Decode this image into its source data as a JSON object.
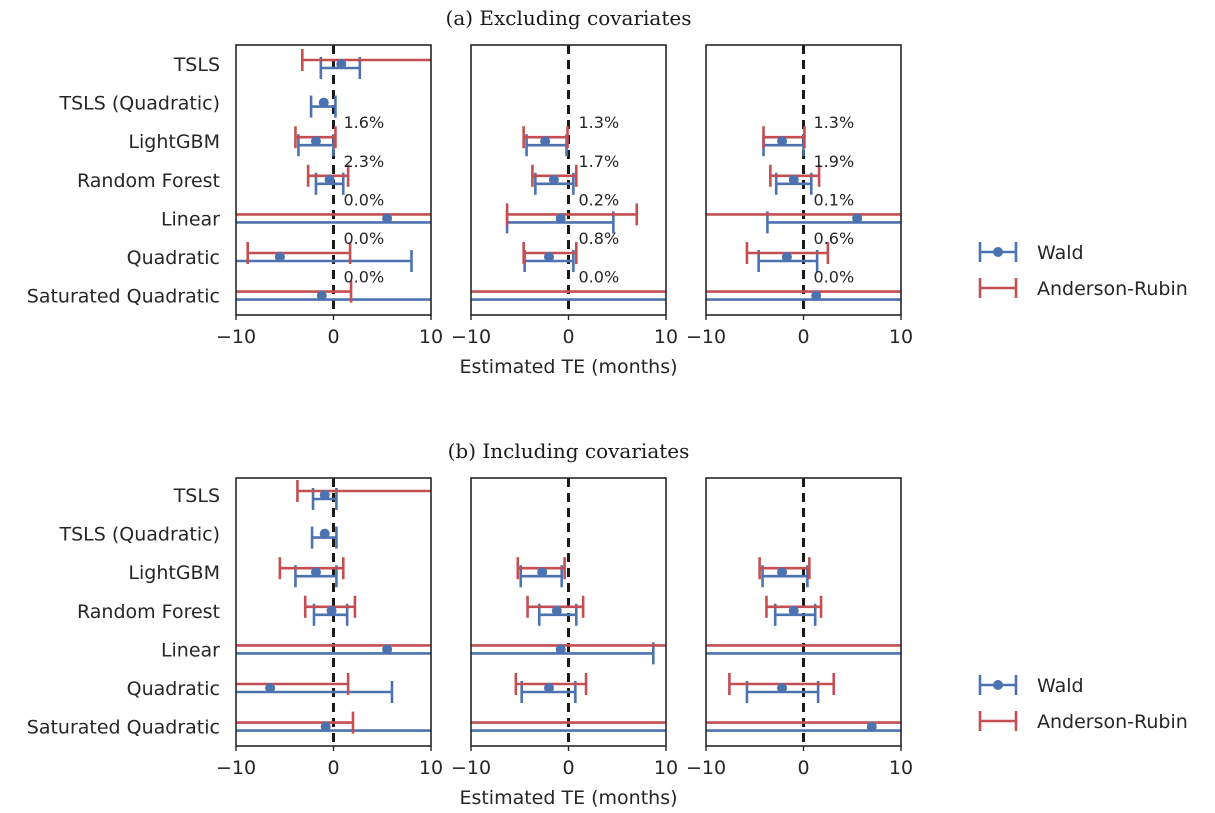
{
  "figure": {
    "xlabel": "Estimated TE (months)",
    "legend": [
      "Wald",
      "Anderson-Rubin"
    ],
    "colors": {
      "wald": "#4C72B0",
      "ar": "#C44E52",
      "zero_line": "#1a1a1a",
      "frame": "#262626"
    }
  },
  "chart_data": [
    {
      "type": "errorbar",
      "title": "(a) Excluding covariates",
      "panel": 1,
      "xlim": [
        -10,
        10
      ],
      "xticks": [
        "−10",
        "0",
        "10"
      ],
      "categories": [
        "TSLS",
        "TSLS (Quadratic)",
        "LightGBM",
        "Random Forest",
        "Linear",
        "Quadratic",
        "Saturated Quadratic"
      ],
      "series": [
        {
          "name": "Wald",
          "points": [
            {
              "y": 0.8,
              "lo": -1.3,
              "hi": 2.7
            },
            {
              "y": -1.0,
              "lo": -2.3,
              "hi": 0.2
            },
            {
              "y": -1.8,
              "lo": -3.6,
              "hi": 0.0
            },
            {
              "y": -0.4,
              "lo": -1.8,
              "hi": 1.0
            },
            {
              "y": 5.5,
              "lo": -12,
              "hi": 12
            },
            {
              "y": -5.5,
              "lo": -12,
              "hi": 8.0
            },
            {
              "y": -1.2,
              "lo": -12,
              "hi": 12
            }
          ]
        },
        {
          "name": "Anderson-Rubin",
          "points": [
            {
              "y": 0.8,
              "lo": -3.2,
              "hi": 12
            },
            null,
            {
              "y": -1.8,
              "lo": -3.9,
              "hi": 0.2
            },
            {
              "y": -0.4,
              "lo": -2.6,
              "hi": 1.5
            },
            {
              "y": 5.5,
              "lo": -12,
              "hi": 12
            },
            {
              "y": -5.5,
              "lo": -8.8,
              "hi": 1.7
            },
            {
              "y": -1.2,
              "lo": -12,
              "hi": 1.8
            }
          ]
        }
      ],
      "annotations": [
        "",
        "",
        "1.6%",
        "2.3%",
        "0.0%",
        "0.0%",
        "0.0%"
      ]
    },
    {
      "type": "errorbar",
      "title": "",
      "panel": 2,
      "xlim": [
        -10,
        10
      ],
      "xticks": [
        "−10",
        "0",
        "10"
      ],
      "categories": [
        "TSLS",
        "TSLS (Quadratic)",
        "LightGBM",
        "Random Forest",
        "Linear",
        "Quadratic",
        "Saturated Quadratic"
      ],
      "series": [
        {
          "name": "Wald",
          "points": [
            null,
            null,
            {
              "y": -2.4,
              "lo": -4.3,
              "hi": -0.2
            },
            {
              "y": -1.5,
              "lo": -3.4,
              "hi": 0.5
            },
            {
              "y": -0.8,
              "lo": -6.3,
              "hi": 4.6
            },
            {
              "y": -2.0,
              "lo": -4.5,
              "hi": 0.5
            },
            {
              "y": null,
              "lo": -12,
              "hi": 12
            }
          ]
        },
        {
          "name": "Anderson-Rubin",
          "points": [
            null,
            null,
            {
              "y": -2.4,
              "lo": -4.6,
              "hi": -0.1
            },
            {
              "y": -1.5,
              "lo": -3.7,
              "hi": 0.8
            },
            {
              "y": -0.8,
              "lo": -6.3,
              "hi": 7.0
            },
            {
              "y": -2.0,
              "lo": -4.6,
              "hi": 0.8
            },
            {
              "y": null,
              "lo": -12,
              "hi": 12
            }
          ]
        }
      ],
      "annotations": [
        "",
        "",
        "1.3%",
        "1.7%",
        "0.2%",
        "0.8%",
        "0.0%"
      ]
    },
    {
      "type": "errorbar",
      "title": "",
      "panel": 3,
      "xlim": [
        -10,
        10
      ],
      "xticks": [
        "−10",
        "0",
        "10"
      ],
      "categories": [
        "TSLS",
        "TSLS (Quadratic)",
        "LightGBM",
        "Random Forest",
        "Linear",
        "Quadratic",
        "Saturated Quadratic"
      ],
      "series": [
        {
          "name": "Wald",
          "points": [
            null,
            null,
            {
              "y": -2.2,
              "lo": -4.1,
              "hi": 0.0
            },
            {
              "y": -1.0,
              "lo": -2.8,
              "hi": 0.8
            },
            {
              "y": 5.5,
              "lo": -3.7,
              "hi": 12
            },
            {
              "y": -1.7,
              "lo": -4.6,
              "hi": 1.4
            },
            {
              "y": 1.3,
              "lo": -12,
              "hi": 12
            }
          ]
        },
        {
          "name": "Anderson-Rubin",
          "points": [
            null,
            null,
            {
              "y": -2.2,
              "lo": -4.1,
              "hi": 0.1
            },
            {
              "y": -1.0,
              "lo": -3.4,
              "hi": 1.6
            },
            {
              "y": 5.5,
              "lo": -12,
              "hi": 12
            },
            {
              "y": -1.7,
              "lo": -5.8,
              "hi": 2.5
            },
            {
              "y": 1.3,
              "lo": -12,
              "hi": 12
            }
          ]
        }
      ],
      "annotations": [
        "",
        "",
        "1.3%",
        "1.9%",
        "0.1%",
        "0.6%",
        "0.0%"
      ]
    },
    {
      "type": "errorbar",
      "title": "(b) Including covariates",
      "panel": 1,
      "xlim": [
        -10,
        10
      ],
      "xticks": [
        "−10",
        "0",
        "10"
      ],
      "categories": [
        "TSLS",
        "TSLS (Quadratic)",
        "LightGBM",
        "Random Forest",
        "Linear",
        "Quadratic",
        "Saturated Quadratic"
      ],
      "series": [
        {
          "name": "Wald",
          "points": [
            {
              "y": -0.9,
              "lo": -2.1,
              "hi": 0.3
            },
            {
              "y": -0.9,
              "lo": -2.2,
              "hi": 0.3
            },
            {
              "y": -1.8,
              "lo": -3.9,
              "hi": 0.3
            },
            {
              "y": -0.2,
              "lo": -2.0,
              "hi": 1.4
            },
            {
              "y": 5.5,
              "lo": -12,
              "hi": 12
            },
            {
              "y": -6.5,
              "lo": -12,
              "hi": 6.0
            },
            {
              "y": -0.8,
              "lo": -12,
              "hi": 12
            }
          ]
        },
        {
          "name": "Anderson-Rubin",
          "points": [
            {
              "y": -0.9,
              "lo": -3.7,
              "hi": 12
            },
            null,
            {
              "y": -1.8,
              "lo": -5.5,
              "hi": 1.0
            },
            {
              "y": -0.2,
              "lo": -2.9,
              "hi": 2.2
            },
            {
              "y": 5.5,
              "lo": -12,
              "hi": 12
            },
            {
              "y": -6.5,
              "lo": -12,
              "hi": 1.5
            },
            {
              "y": -0.8,
              "lo": -12,
              "hi": 2.0
            }
          ]
        }
      ],
      "annotations": []
    },
    {
      "type": "errorbar",
      "title": "",
      "panel": 2,
      "xlim": [
        -10,
        10
      ],
      "xticks": [
        "−10",
        "0",
        "10"
      ],
      "categories": [
        "TSLS",
        "TSLS (Quadratic)",
        "LightGBM",
        "Random Forest",
        "Linear",
        "Quadratic",
        "Saturated Quadratic"
      ],
      "series": [
        {
          "name": "Wald",
          "points": [
            null,
            null,
            {
              "y": -2.7,
              "lo": -4.9,
              "hi": -0.7
            },
            {
              "y": -1.2,
              "lo": -3.0,
              "hi": 0.8
            },
            {
              "y": -0.8,
              "lo": -12,
              "hi": 8.7
            },
            {
              "y": -2.0,
              "lo": -4.8,
              "hi": 0.7
            },
            {
              "y": null,
              "lo": -12,
              "hi": 12
            }
          ]
        },
        {
          "name": "Anderson-Rubin",
          "points": [
            null,
            null,
            {
              "y": -2.7,
              "lo": -5.2,
              "hi": -0.4
            },
            {
              "y": -1.2,
              "lo": -4.2,
              "hi": 1.5
            },
            {
              "y": -0.8,
              "lo": -12,
              "hi": 12
            },
            {
              "y": -2.0,
              "lo": -5.4,
              "hi": 1.8
            },
            {
              "y": null,
              "lo": -12,
              "hi": 12
            }
          ]
        }
      ],
      "annotations": []
    },
    {
      "type": "errorbar",
      "title": "",
      "panel": 3,
      "xlim": [
        -10,
        10
      ],
      "xticks": [
        "−10",
        "0",
        "10"
      ],
      "categories": [
        "TSLS",
        "TSLS (Quadratic)",
        "LightGBM",
        "Random Forest",
        "Linear",
        "Quadratic",
        "Saturated Quadratic"
      ],
      "series": [
        {
          "name": "Wald",
          "points": [
            null,
            null,
            {
              "y": -2.2,
              "lo": -4.2,
              "hi": 0.4
            },
            {
              "y": -1.0,
              "lo": -2.9,
              "hi": 1.2
            },
            {
              "y": null,
              "lo": -12,
              "hi": 12
            },
            {
              "y": -2.2,
              "lo": -5.8,
              "hi": 1.5
            },
            {
              "y": 7.0,
              "lo": -12,
              "hi": 12
            }
          ]
        },
        {
          "name": "Anderson-Rubin",
          "points": [
            null,
            null,
            {
              "y": -2.2,
              "lo": -4.5,
              "hi": 0.6
            },
            {
              "y": -1.0,
              "lo": -3.8,
              "hi": 1.8
            },
            {
              "y": null,
              "lo": -12,
              "hi": 12
            },
            {
              "y": -2.2,
              "lo": -7.6,
              "hi": 3.1
            },
            {
              "y": null,
              "lo": -12,
              "hi": 12
            }
          ]
        }
      ],
      "annotations": []
    }
  ]
}
